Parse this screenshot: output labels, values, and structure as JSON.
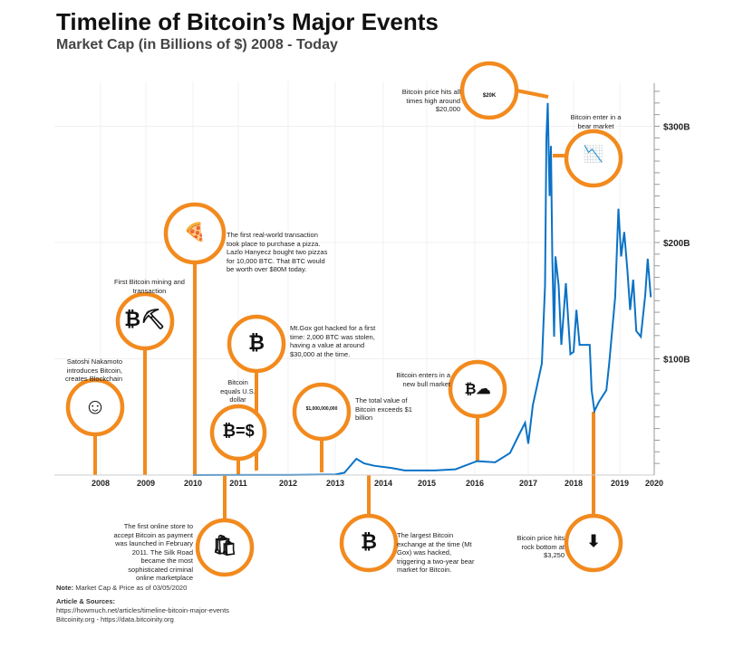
{
  "title": "Timeline of Bitcoin’s Major Events",
  "subtitle": "Market Cap (in Billions of $) 2008 - Today",
  "chart_data": {
    "type": "line",
    "title": "Timeline of Bitcoin’s Major Events",
    "subtitle": "Market Cap (in Billions of $) 2008 - Today",
    "x_ticks": [
      "2008",
      "2009",
      "2010",
      "2011",
      "2012",
      "2013",
      "2014",
      "2015",
      "2016",
      "2017",
      "2018",
      "2019",
      "2020"
    ],
    "y_ticks": [
      {
        "value": 100,
        "label": "$100B"
      },
      {
        "value": 200,
        "label": "$200B"
      },
      {
        "value": 300,
        "label": "$300B"
      }
    ],
    "ylim": [
      0,
      330
    ],
    "xlim": [
      2008,
      2020
    ],
    "ylabel": "Market Cap (Billions of $)",
    "color": "#0b72c6",
    "series": [
      {
        "name": "Bitcoin market cap",
        "points": [
          [
            2010.0,
            0
          ],
          [
            2011.0,
            0.05
          ],
          [
            2012.0,
            0.1
          ],
          [
            2013.0,
            0.5
          ],
          [
            2013.19,
            2
          ],
          [
            2013.44,
            14
          ],
          [
            2013.6,
            10
          ],
          [
            2013.81,
            8
          ],
          [
            2014.2,
            6
          ],
          [
            2014.49,
            4
          ],
          [
            2015.17,
            4
          ],
          [
            2015.6,
            5
          ],
          [
            2016.04,
            12
          ],
          [
            2016.38,
            11
          ],
          [
            2016.66,
            19
          ],
          [
            2016.83,
            35
          ],
          [
            2016.94,
            45
          ],
          [
            2017.0,
            27
          ],
          [
            2017.1,
            60
          ],
          [
            2017.2,
            78
          ],
          [
            2017.3,
            96
          ],
          [
            2017.37,
            163
          ],
          [
            2017.4,
            290
          ],
          [
            2017.43,
            320
          ],
          [
            2017.47,
            240
          ],
          [
            2017.5,
            283
          ],
          [
            2017.53,
            188
          ],
          [
            2017.57,
            119
          ],
          [
            2017.6,
            188
          ],
          [
            2017.67,
            163
          ],
          [
            2017.73,
            112
          ],
          [
            2017.83,
            165
          ],
          [
            2017.93,
            104
          ],
          [
            2018.0,
            106
          ],
          [
            2018.06,
            142
          ],
          [
            2018.13,
            112
          ],
          [
            2018.26,
            112
          ],
          [
            2018.35,
            112
          ],
          [
            2018.39,
            73
          ],
          [
            2018.45,
            55
          ],
          [
            2018.55,
            63
          ],
          [
            2018.71,
            73
          ],
          [
            2018.77,
            96
          ],
          [
            2018.9,
            153
          ],
          [
            2018.97,
            229
          ],
          [
            2019.04,
            188
          ],
          [
            2019.13,
            209
          ],
          [
            2019.22,
            176
          ],
          [
            2019.3,
            142
          ],
          [
            2019.39,
            168
          ],
          [
            2019.48,
            124
          ],
          [
            2019.61,
            119
          ],
          [
            2019.74,
            155
          ],
          [
            2019.81,
            186
          ],
          [
            2019.9,
            153
          ]
        ]
      }
    ],
    "grid": true
  },
  "events": {
    "satoshi": "Satoshi Nakamoto introduces Bitcoin, creates Blockchain",
    "mining": "First Bitcoin mining and transaction",
    "pizza": "The first real-world transaction took place to purchase a pizza. Lazlo Hanyecz bought two pizzas for 10,000 BTC. That BTC would be worth over $80M today.",
    "mtgox1": "Mt.Gox got hacked for a first time: 2,000 BTC was stolen, having a value at around $30,000 at the time.",
    "parity": "Bitcoin equals U.S. dollar",
    "parity_icon": "₿=$",
    "billion": "The total value of Bitcoin exceeds $1 billion",
    "billion_icon": "$1,000,000,000",
    "bull": "Bitcoin enters in a new bull market",
    "ath": "Bitcoin price hits all times high around $20,000",
    "ath_icon": "$20K",
    "bear": "Bitcoin enter in a bear market",
    "silkroad": "The first online store to accept Bitcoin as payment was launched in February 2011. The Silk Road became the most sophisticated criminal online marketplace",
    "mtgox2": "The largest Bitcoin exchange at the time (Mt Gox) was hacked, triggering a two-year bear market for Bitcoin.",
    "bottom": "Bicoin price hits rock bottom at $3,250"
  },
  "footer": {
    "note_label": "Note:",
    "note": "Market Cap & Price as of 03/05/2020",
    "sources_label": "Article & Sources:",
    "source1": "https://howmuch.net/articles/timeline-bitcoin-major-events",
    "source2": "Bitcoinity.org - https://data.bitcoinity.org"
  },
  "colors": {
    "accent": "#f28a1e",
    "line": "#0b72c6"
  }
}
